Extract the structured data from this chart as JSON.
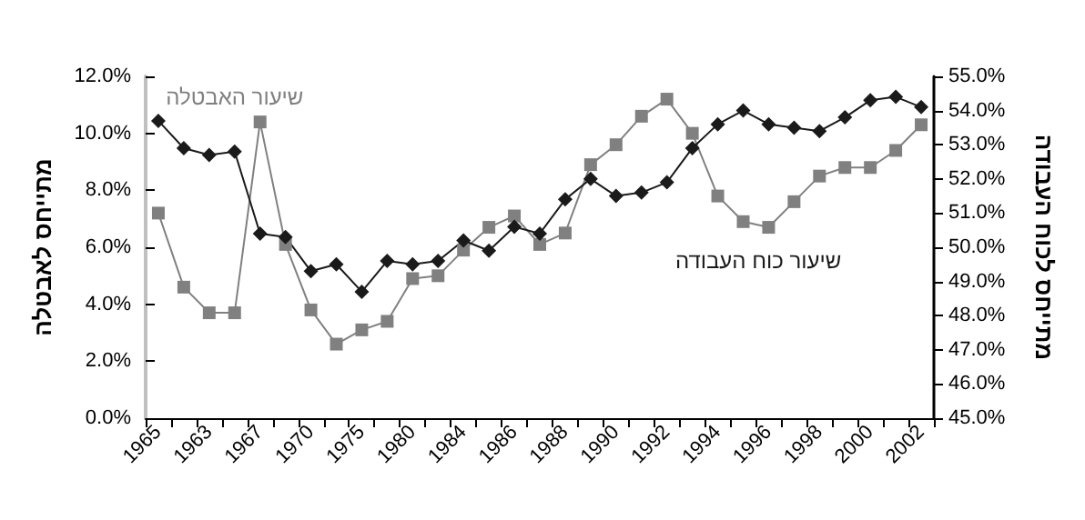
{
  "chart_data": {
    "type": "line",
    "ylabel": "מתייחס לאבטלה",
    "y2label": "מתייחס לכוח העבודה",
    "categories": [
      "1965",
      null,
      "1963",
      null,
      "1967",
      null,
      "1970",
      null,
      "1975",
      null,
      "1980",
      null,
      "1984",
      null,
      "1986",
      null,
      "1988",
      null,
      "1990",
      null,
      "1992",
      null,
      "1994",
      null,
      "1996",
      null,
      "1998",
      null,
      "2000",
      null,
      "2002"
    ],
    "series": [
      {
        "name": "שיעור האבטלה",
        "color": "#808080",
        "marker": "square",
        "values": [
          7.2,
          4.6,
          3.7,
          3.7,
          10.4,
          6.1,
          3.8,
          2.6,
          3.1,
          3.4,
          4.9,
          5.0,
          5.9,
          6.7,
          7.1,
          6.1,
          6.5,
          8.9,
          9.6,
          10.6,
          11.2,
          10.0,
          7.8,
          6.9,
          6.7,
          7.6,
          8.5,
          8.8,
          8.8,
          9.4,
          10.3
        ]
      },
      {
        "name": "שיעור כוח העבודה",
        "color": "#1a1a1a",
        "marker": "diamond",
        "axis": "y2",
        "values": [
          53.7,
          52.9,
          52.7,
          52.8,
          50.4,
          50.3,
          49.3,
          49.5,
          48.7,
          49.6,
          49.5,
          49.6,
          50.2,
          49.9,
          50.6,
          50.4,
          51.4,
          52.0,
          51.5,
          51.6,
          51.9,
          52.9,
          53.6,
          54.0,
          53.6,
          53.5,
          53.4,
          53.8,
          54.3,
          54.4,
          54.1
        ]
      }
    ],
    "ylim": [
      0,
      12
    ],
    "yticks": [
      {
        "value": 0,
        "label": "0.0%"
      },
      {
        "value": 2,
        "label": "2.0%"
      },
      {
        "value": 4,
        "label": "4.0%"
      },
      {
        "value": 6,
        "label": "6.0%"
      },
      {
        "value": 8,
        "label": "8.0%"
      },
      {
        "value": 10,
        "label": "10.0%"
      },
      {
        "value": 12,
        "label": "12.0%"
      }
    ],
    "y2lim": [
      45,
      55
    ],
    "y2ticks": [
      {
        "value": 45,
        "label": "45.0%"
      },
      {
        "value": 46,
        "label": "46.0%"
      },
      {
        "value": 47,
        "label": "47.0%"
      },
      {
        "value": 48,
        "label": "48.0%"
      },
      {
        "value": 49,
        "label": "49.0%"
      },
      {
        "value": 50,
        "label": "50.0%"
      },
      {
        "value": 51,
        "label": "51.0%"
      },
      {
        "value": 52,
        "label": "52.0%"
      },
      {
        "value": 53,
        "label": "53.0%"
      },
      {
        "value": 54,
        "label": "54.0%"
      },
      {
        "value": 55,
        "label": "55.0%"
      }
    ],
    "grid": false,
    "legend": false,
    "line_style": "solid"
  }
}
